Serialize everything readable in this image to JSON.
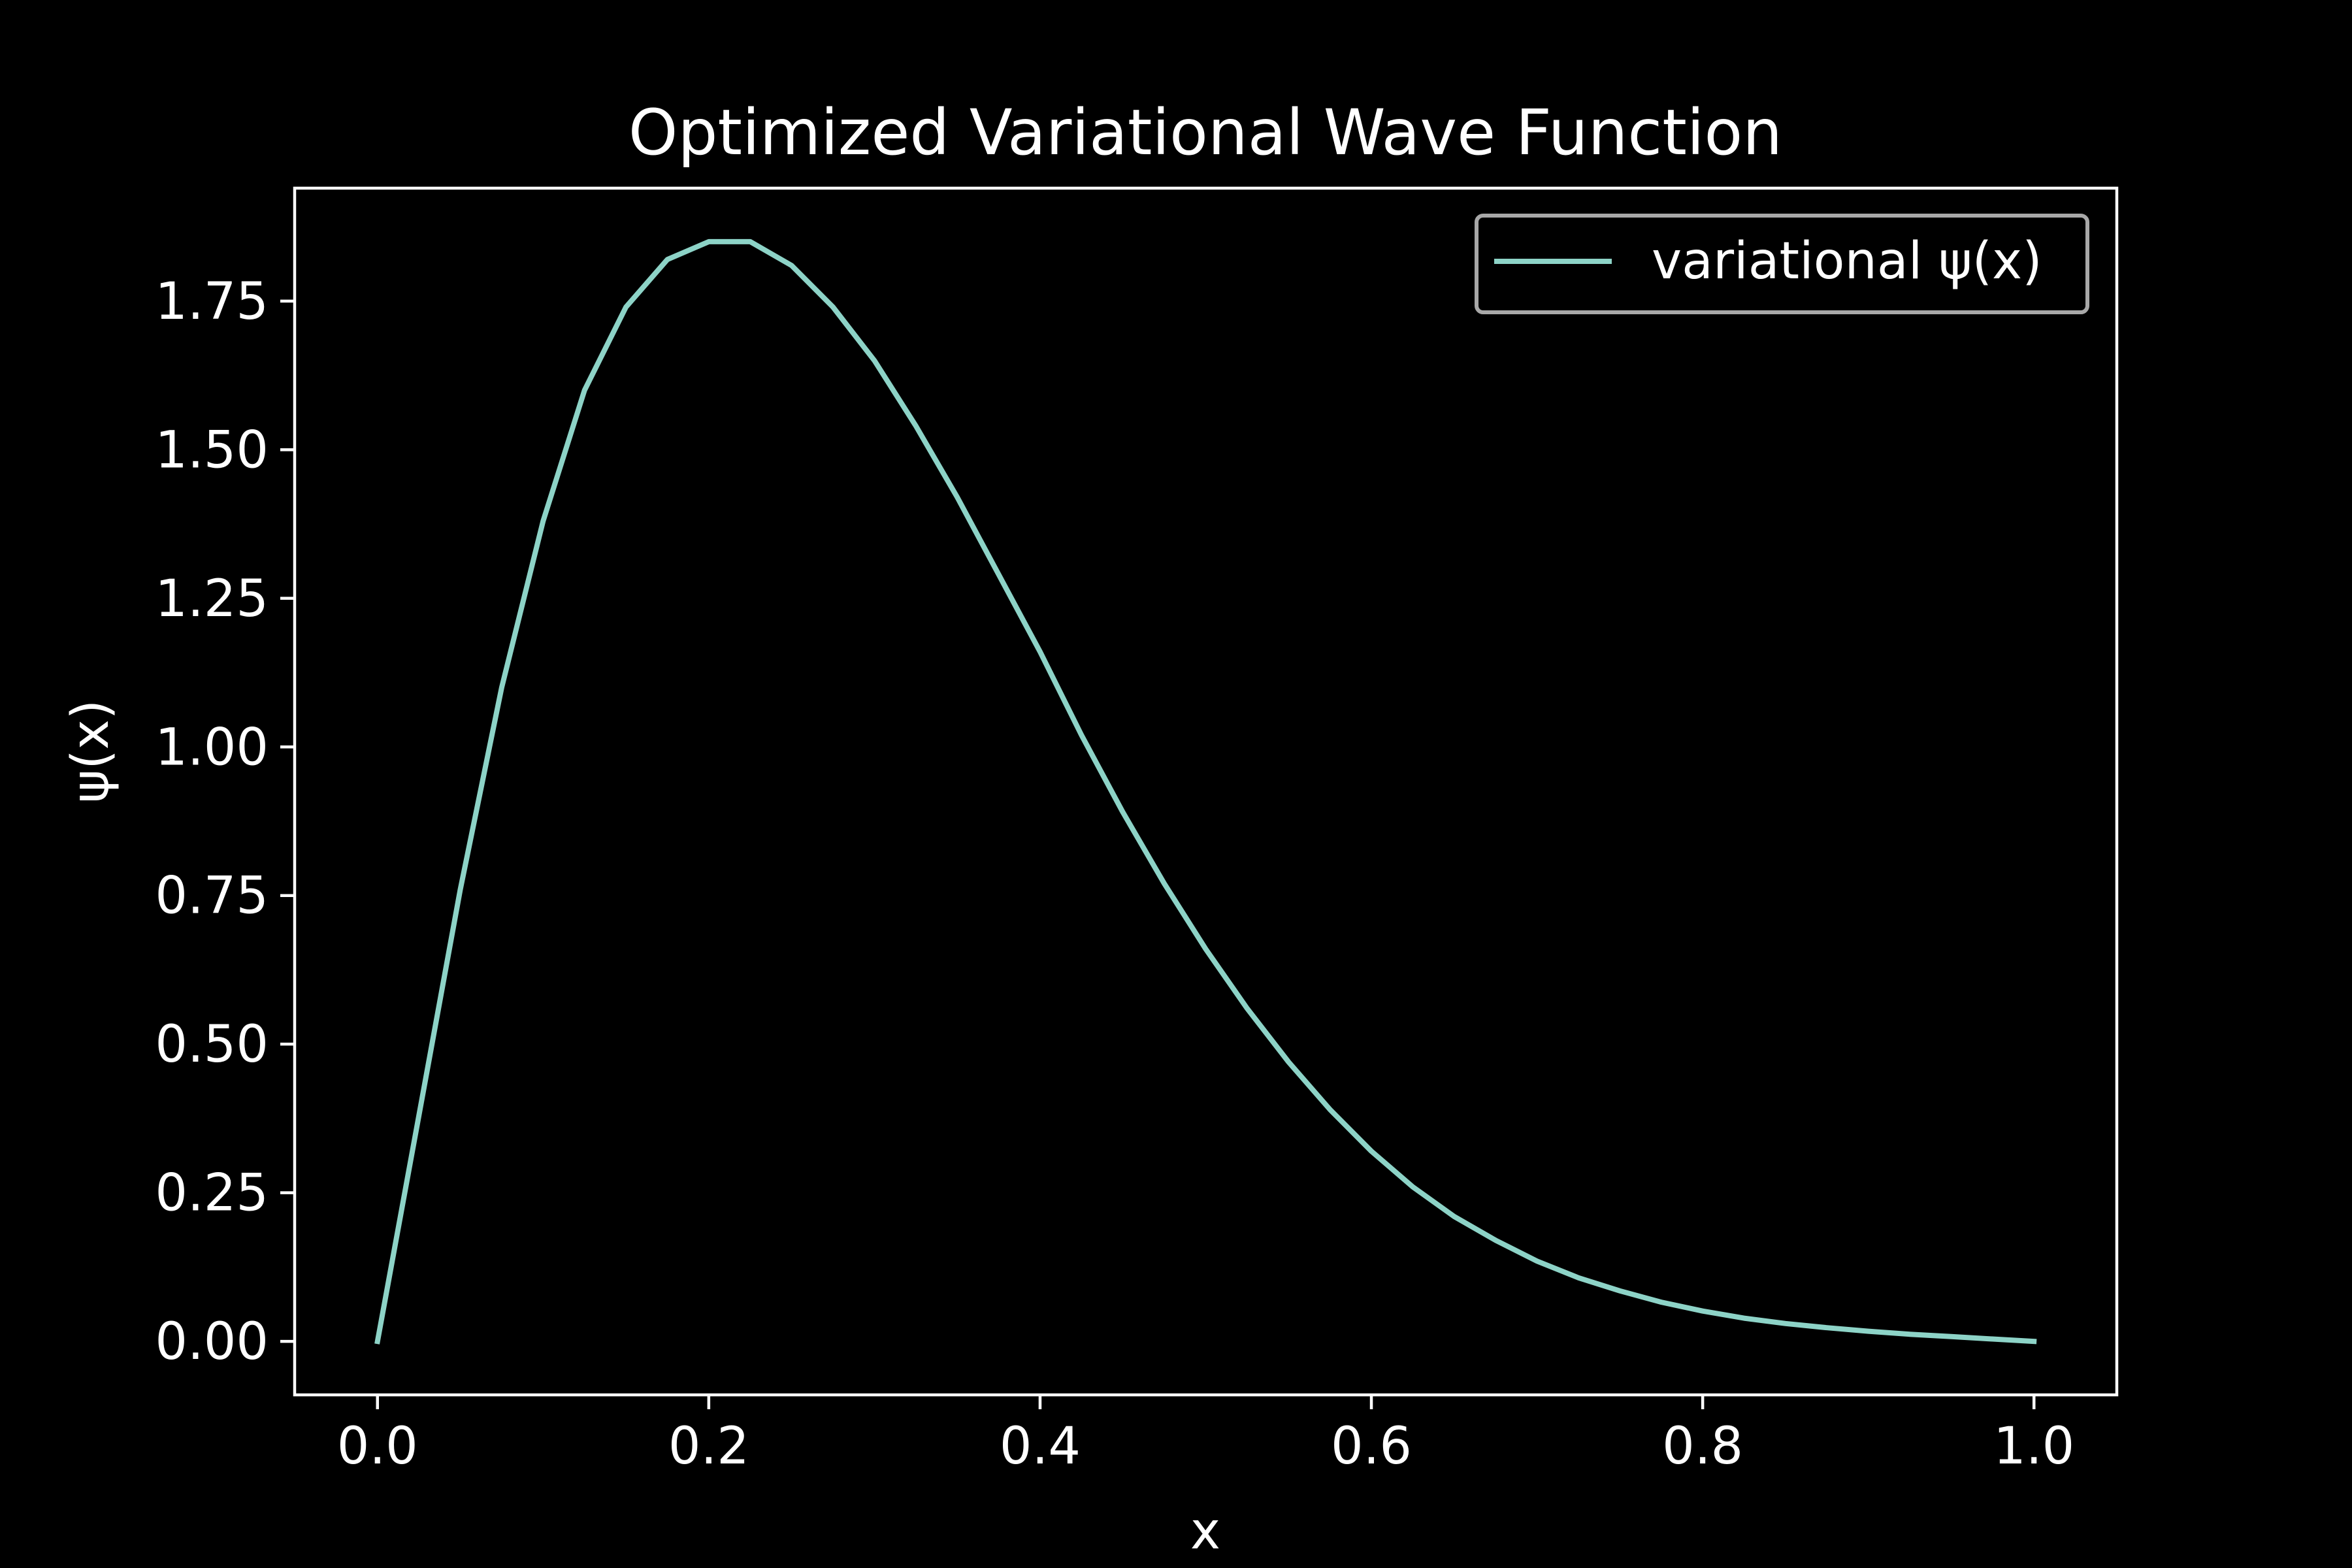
{
  "chart_data": {
    "type": "line",
    "title": "Optimized Variational Wave Function",
    "xlabel": "x",
    "ylabel": "ψ(x)",
    "xlim": [
      -0.05,
      1.05
    ],
    "ylim": [
      -0.09,
      1.94
    ],
    "xticks": [
      0.0,
      0.2,
      0.4,
      0.6,
      0.8,
      1.0
    ],
    "xtick_labels": [
      "0.0",
      "0.2",
      "0.4",
      "0.6",
      "0.8",
      "1.0"
    ],
    "yticks": [
      0.0,
      0.25,
      0.5,
      0.75,
      1.0,
      1.25,
      1.5,
      1.75
    ],
    "ytick_labels": [
      "0.00",
      "0.25",
      "0.50",
      "0.75",
      "1.00",
      "1.25",
      "1.50",
      "1.75"
    ],
    "grid": false,
    "legend_position": "top-right",
    "background_color": "#000000",
    "axes_color": "#ffffff",
    "series": [
      {
        "name": "variational ψ(x)",
        "color": "#8dd3c7",
        "x": [
          0.0,
          0.025,
          0.05,
          0.075,
          0.1,
          0.125,
          0.15,
          0.175,
          0.2,
          0.225,
          0.25,
          0.275,
          0.3,
          0.325,
          0.35,
          0.375,
          0.4,
          0.425,
          0.45,
          0.475,
          0.5,
          0.525,
          0.55,
          0.575,
          0.6,
          0.625,
          0.65,
          0.675,
          0.7,
          0.725,
          0.75,
          0.775,
          0.8,
          0.825,
          0.85,
          0.875,
          0.9,
          0.925,
          0.95,
          0.975,
          1.0
        ],
        "values": [
          0.0,
          0.38,
          0.76,
          1.1,
          1.38,
          1.6,
          1.74,
          1.82,
          1.85,
          1.85,
          1.81,
          1.74,
          1.65,
          1.54,
          1.42,
          1.29,
          1.16,
          1.02,
          0.89,
          0.77,
          0.66,
          0.56,
          0.47,
          0.39,
          0.32,
          0.26,
          0.21,
          0.17,
          0.135,
          0.107,
          0.085,
          0.066,
          0.051,
          0.039,
          0.03,
          0.023,
          0.017,
          0.012,
          0.008,
          0.004,
          0.0
        ]
      }
    ]
  }
}
